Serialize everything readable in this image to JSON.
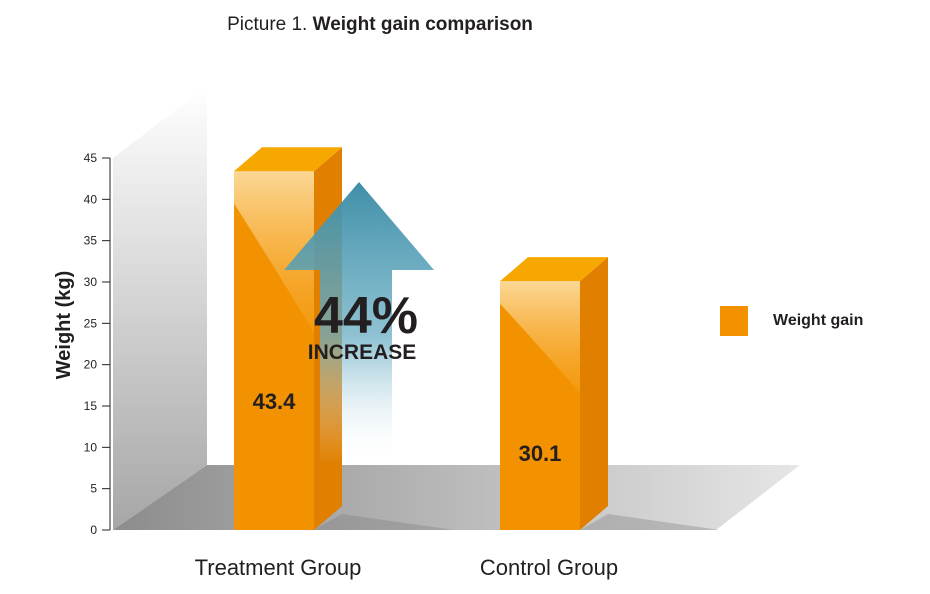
{
  "title": {
    "prefix": "Picture 1.",
    "main": "Weight gain comparison"
  },
  "chart_data": {
    "type": "bar",
    "categories": [
      "Treatment Group",
      "Control Group"
    ],
    "series": [
      {
        "name": "Weight gain",
        "values": [
          43.4,
          30.1
        ]
      }
    ],
    "data_labels": [
      "43.4",
      "30.1"
    ],
    "ylabel": "Weight (kg)",
    "xlabel": "",
    "ylim": [
      0,
      45
    ],
    "yticks": [
      0,
      5,
      10,
      15,
      20,
      25,
      30,
      35,
      40,
      45
    ],
    "annotation": {
      "value": "44%",
      "text": "INCREASE"
    },
    "legend_position": "right",
    "grid": false
  },
  "colors": {
    "bar_front": "#f39200",
    "bar_side": "#e07f00",
    "bar_top": "#f6a800",
    "arrow": "#3f8fa8"
  }
}
